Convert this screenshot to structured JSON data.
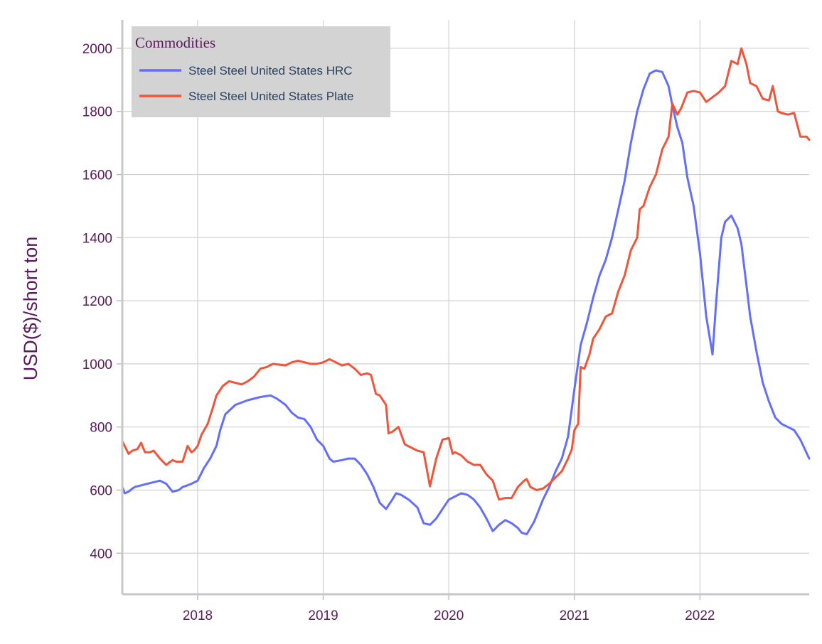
{
  "chart_data": {
    "type": "line",
    "title": "",
    "xlabel": "",
    "ylabel": "USD($)/short ton",
    "xlim": [
      2017.4,
      2022.87
    ],
    "ylim": [
      270,
      2090
    ],
    "x_ticks": [
      "2018",
      "2019",
      "2020",
      "2021",
      "2022"
    ],
    "y_ticks": [
      400,
      600,
      800,
      1000,
      1200,
      1400,
      1600,
      1800,
      2000
    ],
    "grid": true,
    "legend": {
      "title": "Commodities",
      "placement": "top-left"
    },
    "colors": {
      "hrc": "#636efa",
      "plate": "#ef553b",
      "legend_bg": "#d3d3d3",
      "grid": "#d0d0d0",
      "text": "#5b1a5e"
    },
    "series": [
      {
        "name": "Steel Steel United States HRC",
        "color": "#636efa",
        "x": [
          2017.4,
          2017.42,
          2017.45,
          2017.48,
          2017.5,
          2017.55,
          2017.6,
          2017.65,
          2017.7,
          2017.75,
          2017.8,
          2017.85,
          2017.88,
          2017.92,
          2017.95,
          2018.0,
          2018.05,
          2018.1,
          2018.15,
          2018.18,
          2018.22,
          2018.3,
          2018.4,
          2018.5,
          2018.58,
          2018.63,
          2018.7,
          2018.75,
          2018.8,
          2018.85,
          2018.9,
          2018.95,
          2019.0,
          2019.05,
          2019.08,
          2019.15,
          2019.2,
          2019.25,
          2019.3,
          2019.35,
          2019.4,
          2019.45,
          2019.5,
          2019.55,
          2019.58,
          2019.62,
          2019.68,
          2019.75,
          2019.8,
          2019.85,
          2019.9,
          2019.95,
          2020.0,
          2020.05,
          2020.1,
          2020.15,
          2020.2,
          2020.25,
          2020.3,
          2020.35,
          2020.4,
          2020.45,
          2020.5,
          2020.55,
          2020.58,
          2020.62,
          2020.68,
          2020.72,
          2020.75,
          2020.8,
          2020.85,
          2020.9,
          2020.95,
          2021.0,
          2021.05,
          2021.1,
          2021.15,
          2021.2,
          2021.25,
          2021.3,
          2021.35,
          2021.4,
          2021.45,
          2021.5,
          2021.55,
          2021.6,
          2021.65,
          2021.7,
          2021.75,
          2021.78,
          2021.82,
          2021.86,
          2021.9,
          2021.95,
          2022.0,
          2022.05,
          2022.1,
          2022.13,
          2022.17,
          2022.2,
          2022.25,
          2022.3,
          2022.33,
          2022.37,
          2022.4,
          2022.45,
          2022.5,
          2022.55,
          2022.6,
          2022.65,
          2022.7,
          2022.75,
          2022.8,
          2022.87
        ],
        "values": [
          610,
          590,
          595,
          605,
          610,
          615,
          620,
          625,
          630,
          620,
          595,
          600,
          610,
          615,
          620,
          630,
          670,
          700,
          740,
          790,
          840,
          870,
          885,
          895,
          900,
          890,
          870,
          845,
          830,
          825,
          800,
          760,
          740,
          700,
          690,
          695,
          700,
          700,
          680,
          650,
          610,
          560,
          540,
          570,
          590,
          585,
          570,
          545,
          495,
          490,
          510,
          540,
          570,
          580,
          590,
          585,
          570,
          545,
          510,
          470,
          490,
          505,
          495,
          480,
          465,
          460,
          500,
          540,
          570,
          610,
          660,
          700,
          770,
          920,
          1060,
          1130,
          1210,
          1280,
          1330,
          1400,
          1490,
          1580,
          1700,
          1800,
          1870,
          1920,
          1930,
          1925,
          1880,
          1820,
          1750,
          1700,
          1590,
          1500,
          1350,
          1150,
          1030,
          1200,
          1400,
          1450,
          1470,
          1430,
          1380,
          1250,
          1150,
          1040,
          940,
          880,
          830,
          810,
          800,
          790,
          760,
          700
        ]
      },
      {
        "name": "Steel Steel United States Plate",
        "color": "#ef553b",
        "x": [
          2017.4,
          2017.45,
          2017.48,
          2017.52,
          2017.55,
          2017.58,
          2017.62,
          2017.65,
          2017.7,
          2017.75,
          2017.8,
          2017.83,
          2017.88,
          2017.92,
          2017.95,
          2017.97,
          2018.0,
          2018.03,
          2018.08,
          2018.12,
          2018.15,
          2018.2,
          2018.25,
          2018.3,
          2018.35,
          2018.4,
          2018.45,
          2018.5,
          2018.55,
          2018.6,
          2018.7,
          2018.75,
          2018.8,
          2018.85,
          2018.9,
          2018.95,
          2019.0,
          2019.05,
          2019.1,
          2019.15,
          2019.2,
          2019.25,
          2019.3,
          2019.35,
          2019.38,
          2019.42,
          2019.45,
          2019.5,
          2019.52,
          2019.55,
          2019.6,
          2019.65,
          2019.7,
          2019.75,
          2019.8,
          2019.85,
          2019.9,
          2019.95,
          2020.0,
          2020.03,
          2020.05,
          2020.1,
          2020.15,
          2020.2,
          2020.25,
          2020.3,
          2020.35,
          2020.4,
          2020.45,
          2020.5,
          2020.55,
          2020.6,
          2020.62,
          2020.65,
          2020.7,
          2020.75,
          2020.8,
          2020.85,
          2020.9,
          2020.95,
          2020.98,
          2021.0,
          2021.03,
          2021.05,
          2021.08,
          2021.12,
          2021.15,
          2021.2,
          2021.25,
          2021.3,
          2021.35,
          2021.4,
          2021.45,
          2021.5,
          2021.52,
          2021.55,
          2021.6,
          2021.65,
          2021.7,
          2021.75,
          2021.78,
          2021.82,
          2021.85,
          2021.9,
          2021.95,
          2022.0,
          2022.05,
          2022.1,
          2022.15,
          2022.2,
          2022.25,
          2022.3,
          2022.33,
          2022.37,
          2022.4,
          2022.45,
          2022.5,
          2022.55,
          2022.58,
          2022.62,
          2022.65,
          2022.7,
          2022.75,
          2022.8,
          2022.85,
          2022.87
        ],
        "values": [
          755,
          715,
          725,
          730,
          750,
          720,
          720,
          725,
          700,
          680,
          695,
          690,
          690,
          740,
          720,
          725,
          740,
          775,
          810,
          860,
          900,
          930,
          945,
          940,
          935,
          945,
          960,
          985,
          990,
          1000,
          995,
          1005,
          1010,
          1005,
          1000,
          1000,
          1005,
          1015,
          1005,
          995,
          1000,
          985,
          965,
          970,
          965,
          905,
          900,
          870,
          780,
          785,
          800,
          745,
          735,
          725,
          720,
          612,
          700,
          760,
          765,
          715,
          720,
          710,
          690,
          680,
          680,
          650,
          630,
          570,
          575,
          575,
          610,
          630,
          635,
          610,
          600,
          605,
          620,
          640,
          660,
          700,
          730,
          790,
          810,
          990,
          985,
          1030,
          1080,
          1110,
          1150,
          1160,
          1230,
          1280,
          1360,
          1400,
          1490,
          1500,
          1560,
          1600,
          1680,
          1720,
          1825,
          1790,
          1810,
          1860,
          1865,
          1860,
          1830,
          1845,
          1860,
          1880,
          1960,
          1950,
          2000,
          1950,
          1890,
          1880,
          1840,
          1835,
          1880,
          1800,
          1795,
          1790,
          1795,
          1720,
          1720,
          1710
        ]
      }
    ]
  }
}
